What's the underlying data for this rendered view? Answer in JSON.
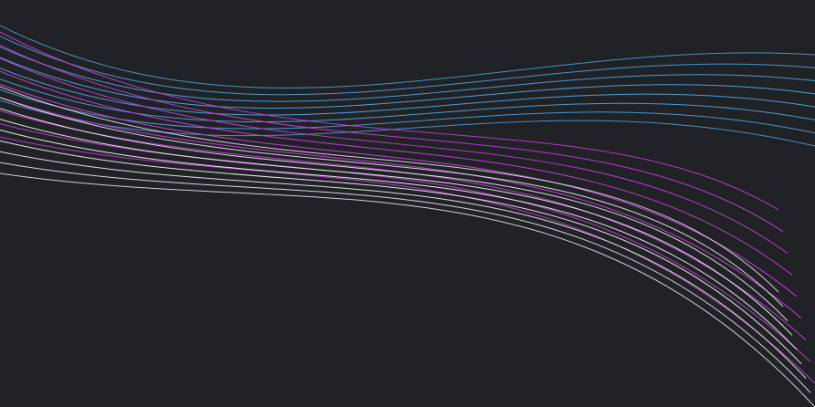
{
  "scene": {
    "background_color": "#212225",
    "line_groups": [
      {
        "name": "blue-lines",
        "color": "#4aa3dd",
        "count": 8
      },
      {
        "name": "magenta-lines",
        "color": "#c83ce0",
        "count": 9
      },
      {
        "name": "white-lines",
        "color": "#e9e9ee",
        "count": 9
      }
    ]
  }
}
